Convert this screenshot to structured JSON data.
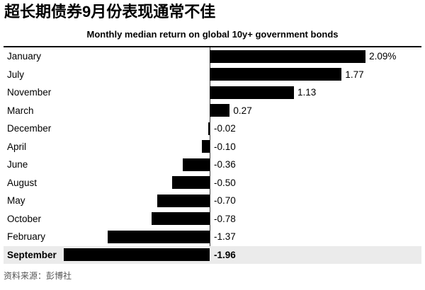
{
  "page": {
    "title": "超长期债券9月份表现通常不佳",
    "source": "资料来源：彭博社"
  },
  "chart_data": {
    "type": "bar",
    "orientation": "horizontal",
    "title": "Monthly median return on global 10y+ government bonds",
    "xlabel": "",
    "ylabel": "",
    "categories": [
      "January",
      "July",
      "November",
      "March",
      "December",
      "April",
      "June",
      "August",
      "May",
      "October",
      "February",
      "September"
    ],
    "values": [
      2.09,
      1.77,
      1.13,
      0.27,
      -0.02,
      -0.1,
      -0.36,
      -0.5,
      -0.7,
      -0.78,
      -1.37,
      -1.96
    ],
    "value_labels": [
      "2.09%",
      "1.77",
      "1.13",
      "0.27",
      "-0.02",
      "-0.10",
      "-0.36",
      "-0.50",
      "-0.70",
      "-0.78",
      "-1.37",
      "-1.96"
    ],
    "unit": "%",
    "xlim": [
      -2.77,
      2.85
    ],
    "sorted": "descending",
    "highlight_category": "September",
    "bar_color": "#000000",
    "highlight_row_color": "#ebebeb",
    "text_color": "#000000",
    "source_text_color": "#555555",
    "grid": false,
    "legend": false,
    "zero_axis_line": true
  }
}
